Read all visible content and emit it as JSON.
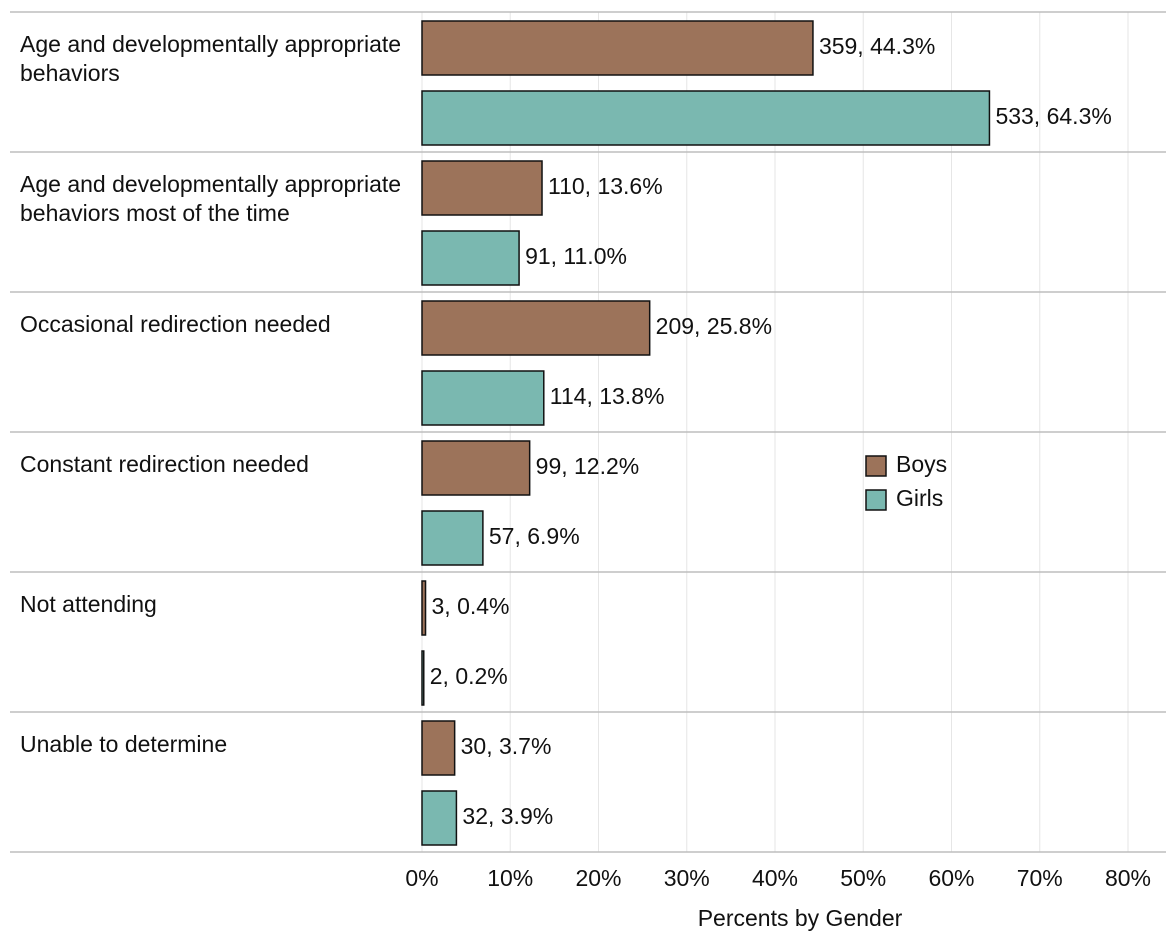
{
  "chart_data": {
    "type": "hbar",
    "categories": [
      "Age and developmentally appropriate behaviors",
      "Age and developmentally appropriate behaviors most of the time",
      "Occasional redirection needed",
      "Constant redirection needed",
      "Not attending",
      "Unable to determine"
    ],
    "series": [
      {
        "name": "Boys",
        "color": "#9c735a",
        "values": [
          44.3,
          13.6,
          25.8,
          12.2,
          0.4,
          3.7
        ],
        "value_labels": [
          "359, 44.3%",
          "110, 13.6%",
          "209, 25.8%",
          "99, 12.2%",
          "3, 0.4%",
          "30, 3.7%"
        ]
      },
      {
        "name": "Girls",
        "color": "#7ab8b0",
        "values": [
          64.3,
          11.0,
          13.8,
          6.9,
          0.2,
          3.9
        ],
        "value_labels": [
          "533, 64.3%",
          "91, 11.0%",
          "114, 13.8%",
          "57, 6.9%",
          "2, 0.2%",
          "32, 3.9%"
        ]
      }
    ],
    "xlabel": "Percents by Gender",
    "xlim": [
      0,
      83
    ],
    "xticks": [
      {
        "value": 0,
        "label": "0%"
      },
      {
        "value": 10,
        "label": "10%"
      },
      {
        "value": 20,
        "label": "20%"
      },
      {
        "value": 30,
        "label": "30%"
      },
      {
        "value": 40,
        "label": "40%"
      },
      {
        "value": 50,
        "label": "50%"
      },
      {
        "value": 60,
        "label": "60%"
      },
      {
        "value": 70,
        "label": "70%"
      },
      {
        "value": 80,
        "label": "80%"
      }
    ],
    "grid": true,
    "legend": "right"
  }
}
